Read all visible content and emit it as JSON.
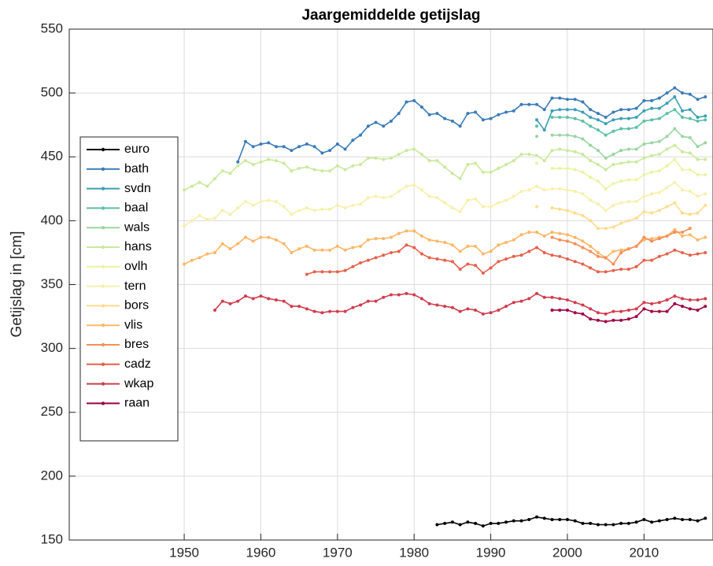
{
  "chart_data": {
    "type": "line",
    "title": "Jaargemiddelde getijslag",
    "y_label": "Getijslag in [cm]",
    "xlim": [
      1935,
      2019
    ],
    "ylim": [
      150,
      550
    ],
    "xticks": [
      1950,
      1960,
      1970,
      1980,
      1990,
      2000,
      2010
    ],
    "yticks": [
      150,
      200,
      250,
      300,
      350,
      400,
      450,
      500,
      550
    ],
    "grid": true,
    "legend": "left",
    "x": [
      1950,
      1951,
      1952,
      1953,
      1954,
      1955,
      1956,
      1957,
      1958,
      1959,
      1960,
      1961,
      1962,
      1963,
      1964,
      1965,
      1966,
      1967,
      1968,
      1969,
      1970,
      1971,
      1972,
      1973,
      1974,
      1975,
      1976,
      1977,
      1978,
      1979,
      1980,
      1981,
      1982,
      1983,
      1984,
      1985,
      1986,
      1987,
      1988,
      1989,
      1990,
      1991,
      1992,
      1993,
      1994,
      1995,
      1996,
      1997,
      1998,
      1999,
      2000,
      2001,
      2002,
      2003,
      2004,
      2005,
      2006,
      2007,
      2008,
      2009,
      2010,
      2011,
      2012,
      2013,
      2014,
      2015,
      2016,
      2017,
      2018
    ],
    "series": [
      {
        "name": "euro",
        "color": "#000000",
        "values": [
          null,
          null,
          null,
          null,
          null,
          null,
          null,
          null,
          null,
          null,
          null,
          null,
          null,
          null,
          null,
          null,
          null,
          null,
          null,
          null,
          null,
          null,
          null,
          null,
          null,
          null,
          null,
          null,
          null,
          null,
          null,
          null,
          null,
          162,
          163,
          164,
          162,
          164,
          163,
          161,
          163,
          163,
          164,
          165,
          165,
          166,
          168,
          167,
          166,
          166,
          166,
          165,
          163,
          163,
          162,
          162,
          162,
          163,
          163,
          164,
          166,
          164,
          165,
          166,
          167,
          166,
          166,
          165,
          167
        ]
      },
      {
        "name": "bath",
        "color": "#3a7bb8",
        "values": [
          null,
          null,
          null,
          null,
          null,
          null,
          null,
          446,
          462,
          458,
          460,
          461,
          458,
          458,
          455,
          458,
          460,
          458,
          453,
          455,
          460,
          456,
          463,
          467,
          474,
          477,
          474,
          478,
          484,
          493,
          494,
          489,
          483,
          484,
          480,
          478,
          474,
          484,
          485,
          479,
          480,
          483,
          485,
          486,
          491,
          491,
          491,
          487,
          496,
          496,
          495,
          495,
          493,
          487,
          484,
          481,
          485,
          487,
          487,
          488,
          494,
          494,
          496,
          500,
          504,
          500,
          499,
          495,
          497
        ]
      },
      {
        "name": "svdn",
        "color": "#3b9fb4",
        "values": [
          null,
          null,
          null,
          null,
          null,
          null,
          null,
          null,
          null,
          null,
          null,
          null,
          null,
          null,
          null,
          null,
          null,
          null,
          null,
          null,
          null,
          null,
          null,
          null,
          null,
          null,
          null,
          null,
          null,
          null,
          null,
          null,
          null,
          null,
          null,
          null,
          null,
          null,
          null,
          null,
          null,
          null,
          null,
          null,
          null,
          null,
          479,
          471,
          486,
          487,
          487,
          487,
          485,
          481,
          479,
          476,
          479,
          480,
          480,
          481,
          486,
          488,
          488,
          492,
          497,
          486,
          487,
          481,
          482
        ]
      },
      {
        "name": "baal",
        "color": "#5ebfa6",
        "values": [
          null,
          null,
          null,
          null,
          null,
          null,
          null,
          null,
          null,
          null,
          null,
          null,
          null,
          null,
          null,
          null,
          null,
          null,
          null,
          null,
          null,
          null,
          null,
          null,
          null,
          null,
          null,
          null,
          null,
          null,
          null,
          null,
          null,
          null,
          null,
          null,
          null,
          null,
          null,
          null,
          null,
          null,
          null,
          null,
          null,
          null,
          474,
          null,
          481,
          481,
          481,
          480,
          478,
          474,
          471,
          467,
          470,
          472,
          472,
          473,
          478,
          479,
          480,
          484,
          487,
          481,
          480,
          478,
          479
        ]
      },
      {
        "name": "wals",
        "color": "#9ad5a2",
        "values": [
          null,
          null,
          null,
          null,
          null,
          null,
          null,
          null,
          null,
          null,
          null,
          null,
          null,
          null,
          null,
          null,
          null,
          null,
          null,
          null,
          null,
          null,
          null,
          null,
          null,
          null,
          null,
          null,
          null,
          null,
          null,
          null,
          null,
          null,
          null,
          null,
          null,
          null,
          null,
          null,
          null,
          null,
          null,
          null,
          null,
          null,
          466,
          null,
          467,
          467,
          467,
          466,
          464,
          459,
          455,
          449,
          452,
          455,
          456,
          456,
          460,
          461,
          462,
          466,
          472,
          466,
          465,
          458,
          461
        ]
      },
      {
        "name": "hans",
        "color": "#cbe99c",
        "values": [
          424,
          427,
          430,
          427,
          433,
          439,
          437,
          443,
          447,
          444,
          446,
          448,
          447,
          445,
          439,
          441,
          442,
          440,
          439,
          439,
          443,
          440,
          443,
          444,
          449,
          449,
          448,
          449,
          452,
          455,
          456,
          452,
          447,
          447,
          442,
          437,
          433,
          444,
          445,
          438,
          438,
          441,
          444,
          447,
          452,
          452,
          451,
          447,
          455,
          456,
          455,
          454,
          452,
          447,
          444,
          440,
          444,
          445,
          446,
          446,
          449,
          451,
          452,
          456,
          459,
          454,
          453,
          448,
          448
        ]
      },
      {
        "name": "ovlh",
        "color": "#eaf4a0",
        "values": [
          null,
          null,
          null,
          null,
          null,
          null,
          null,
          null,
          null,
          null,
          null,
          null,
          null,
          null,
          null,
          null,
          null,
          null,
          null,
          null,
          null,
          null,
          null,
          null,
          null,
          null,
          null,
          null,
          null,
          null,
          null,
          null,
          null,
          null,
          null,
          null,
          null,
          null,
          null,
          null,
          null,
          null,
          null,
          null,
          null,
          null,
          445,
          null,
          441,
          441,
          441,
          440,
          438,
          434,
          431,
          425,
          429,
          431,
          432,
          432,
          436,
          438,
          439,
          443,
          448,
          440,
          440,
          436,
          436
        ]
      },
      {
        "name": "tern",
        "color": "#f6f0ab",
        "values": [
          396,
          400,
          404,
          401,
          402,
          408,
          405,
          410,
          415,
          412,
          415,
          416,
          415,
          411,
          405,
          408,
          410,
          408,
          409,
          409,
          412,
          410,
          412,
          413,
          418,
          419,
          418,
          419,
          423,
          427,
          428,
          424,
          419,
          418,
          414,
          410,
          407,
          416,
          417,
          411,
          411,
          414,
          416,
          419,
          423,
          424,
          427,
          424,
          425,
          425,
          424,
          423,
          421,
          416,
          413,
          408,
          412,
          414,
          415,
          415,
          419,
          421,
          422,
          426,
          430,
          424,
          423,
          419,
          421
        ]
      },
      {
        "name": "bors",
        "color": "#fddc8c",
        "values": [
          null,
          null,
          null,
          null,
          null,
          null,
          null,
          null,
          null,
          null,
          null,
          null,
          null,
          null,
          null,
          null,
          null,
          null,
          null,
          null,
          null,
          null,
          null,
          null,
          null,
          null,
          null,
          null,
          null,
          null,
          null,
          null,
          null,
          null,
          null,
          null,
          null,
          null,
          null,
          null,
          null,
          null,
          null,
          null,
          null,
          null,
          411,
          null,
          410,
          409,
          408,
          406,
          404,
          400,
          394,
          394,
          395,
          398,
          400,
          402,
          407,
          406,
          408,
          411,
          414,
          406,
          405,
          406,
          412
        ]
      },
      {
        "name": "vlis",
        "color": "#fdb767",
        "values": [
          366,
          369,
          371,
          374,
          375,
          382,
          378,
          382,
          387,
          384,
          387,
          387,
          385,
          382,
          375,
          378,
          380,
          377,
          377,
          377,
          380,
          377,
          379,
          380,
          385,
          386,
          386,
          387,
          390,
          392,
          392,
          388,
          385,
          384,
          383,
          381,
          376,
          380,
          380,
          374,
          376,
          381,
          383,
          385,
          389,
          391,
          391,
          388,
          391,
          390,
          389,
          387,
          384,
          380,
          375,
          371,
          376,
          377,
          378,
          380,
          385,
          386,
          387,
          388,
          393,
          388,
          389,
          385,
          387
        ]
      },
      {
        "name": "bres",
        "color": "#f78e58",
        "values": [
          null,
          null,
          null,
          null,
          null,
          null,
          null,
          null,
          null,
          null,
          null,
          null,
          null,
          null,
          null,
          null,
          null,
          null,
          null,
          null,
          null,
          null,
          null,
          null,
          null,
          null,
          null,
          null,
          null,
          null,
          null,
          null,
          null,
          null,
          null,
          null,
          null,
          null,
          null,
          null,
          null,
          null,
          null,
          null,
          null,
          null,
          null,
          null,
          387,
          385,
          384,
          382,
          379,
          376,
          372,
          371,
          366,
          375,
          378,
          380,
          387,
          384,
          386,
          388,
          391,
          391,
          394,
          null,
          null
        ]
      },
      {
        "name": "cadz",
        "color": "#e7604a",
        "values": [
          null,
          null,
          null,
          null,
          null,
          null,
          null,
          null,
          null,
          null,
          null,
          null,
          null,
          null,
          null,
          null,
          358,
          360,
          360,
          360,
          360,
          361,
          364,
          367,
          369,
          371,
          373,
          375,
          376,
          381,
          379,
          374,
          371,
          370,
          369,
          368,
          362,
          366,
          365,
          359,
          363,
          368,
          370,
          372,
          373,
          376,
          379,
          375,
          373,
          372,
          370,
          368,
          366,
          363,
          360,
          360,
          361,
          362,
          362,
          364,
          369,
          369,
          372,
          374,
          377,
          375,
          373,
          374,
          375
        ]
      },
      {
        "name": "wkap",
        "color": "#d03c4e",
        "values": [
          null,
          null,
          null,
          null,
          330,
          337,
          335,
          337,
          341,
          339,
          341,
          339,
          338,
          337,
          333,
          333,
          331,
          329,
          328,
          329,
          329,
          329,
          332,
          334,
          337,
          337,
          340,
          342,
          342,
          343,
          342,
          339,
          335,
          334,
          333,
          332,
          329,
          331,
          330,
          327,
          328,
          330,
          333,
          336,
          337,
          339,
          343,
          340,
          340,
          339,
          338,
          336,
          334,
          331,
          328,
          327,
          329,
          329,
          330,
          331,
          336,
          335,
          336,
          338,
          341,
          339,
          338,
          338,
          339
        ]
      },
      {
        "name": "raan",
        "color": "#9e0142",
        "values": [
          null,
          null,
          null,
          null,
          null,
          null,
          null,
          null,
          null,
          null,
          null,
          null,
          null,
          null,
          null,
          null,
          null,
          null,
          null,
          null,
          null,
          null,
          null,
          null,
          null,
          null,
          null,
          null,
          null,
          null,
          null,
          null,
          null,
          null,
          null,
          null,
          null,
          null,
          null,
          null,
          null,
          null,
          null,
          null,
          null,
          null,
          null,
          null,
          330,
          330,
          330,
          328,
          327,
          323,
          322,
          321,
          322,
          322,
          323,
          325,
          331,
          329,
          329,
          329,
          335,
          333,
          331,
          330,
          333
        ]
      }
    ]
  }
}
